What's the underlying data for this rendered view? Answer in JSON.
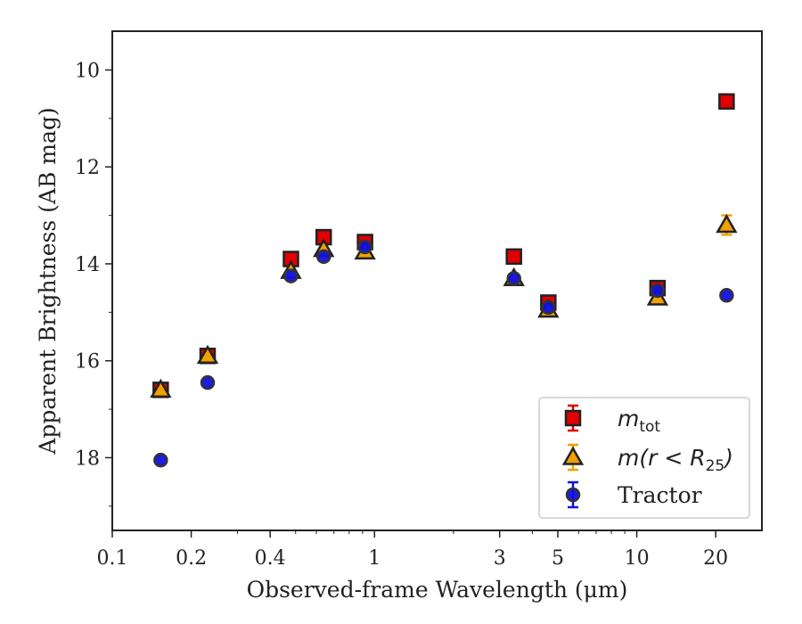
{
  "chart_data": {
    "type": "scatter",
    "title": "",
    "xlabel": "Observed-frame Wavelength (μm)",
    "ylabel": "Apparent Brightness (AB mag)",
    "xscale": "log",
    "xlim": [
      0.1,
      30
    ],
    "ylim": [
      19.5,
      9.2
    ],
    "y_inverted": true,
    "grid": false,
    "legend_position": "lower-right",
    "x_ticks": [
      0.1,
      0.2,
      0.4,
      1,
      3,
      5,
      10,
      20
    ],
    "x_tick_labels": [
      "0.1",
      "0.2",
      "0.4",
      "1",
      "3",
      "5",
      "10",
      "20"
    ],
    "y_ticks": [
      10,
      12,
      14,
      16,
      18
    ],
    "y_tick_labels": [
      "10",
      "12",
      "14",
      "16",
      "18"
    ],
    "series": [
      {
        "name": "m_tot",
        "marker": "square",
        "fill": "#e00000",
        "error_color": "#e00000",
        "x": [
          0.153,
          0.231,
          0.48,
          0.64,
          0.92,
          3.4,
          4.6,
          12.0,
          22.0
        ],
        "y": [
          16.6,
          15.9,
          13.9,
          13.45,
          13.55,
          13.85,
          14.8,
          14.5,
          10.65
        ]
      },
      {
        "name": "m(r < R25)",
        "marker": "triangle",
        "fill": "#f0a000",
        "error_color": "#f0a000",
        "x": [
          0.153,
          0.231,
          0.48,
          0.64,
          0.92,
          3.4,
          4.6,
          12.0,
          22.0
        ],
        "y": [
          16.6,
          15.9,
          14.15,
          13.7,
          13.75,
          14.3,
          14.95,
          14.7,
          13.2
        ],
        "yerr": [
          0,
          0,
          0,
          0,
          0,
          0,
          0,
          0,
          0.2
        ]
      },
      {
        "name": "Tractor",
        "marker": "circle",
        "fill": "#1010e0",
        "error_color": "#1010e0",
        "x": [
          0.153,
          0.231,
          0.48,
          0.64,
          0.92,
          3.4,
          4.6,
          12.0,
          22.0
        ],
        "y": [
          18.05,
          16.45,
          14.25,
          13.85,
          13.65,
          14.3,
          14.9,
          14.55,
          14.65
        ]
      }
    ],
    "legend": [
      {
        "label": "m",
        "sub": "tot"
      },
      {
        "label": "m(r < R",
        "sub": "25",
        "suffix": ")"
      },
      {
        "label": "Tractor"
      }
    ]
  }
}
